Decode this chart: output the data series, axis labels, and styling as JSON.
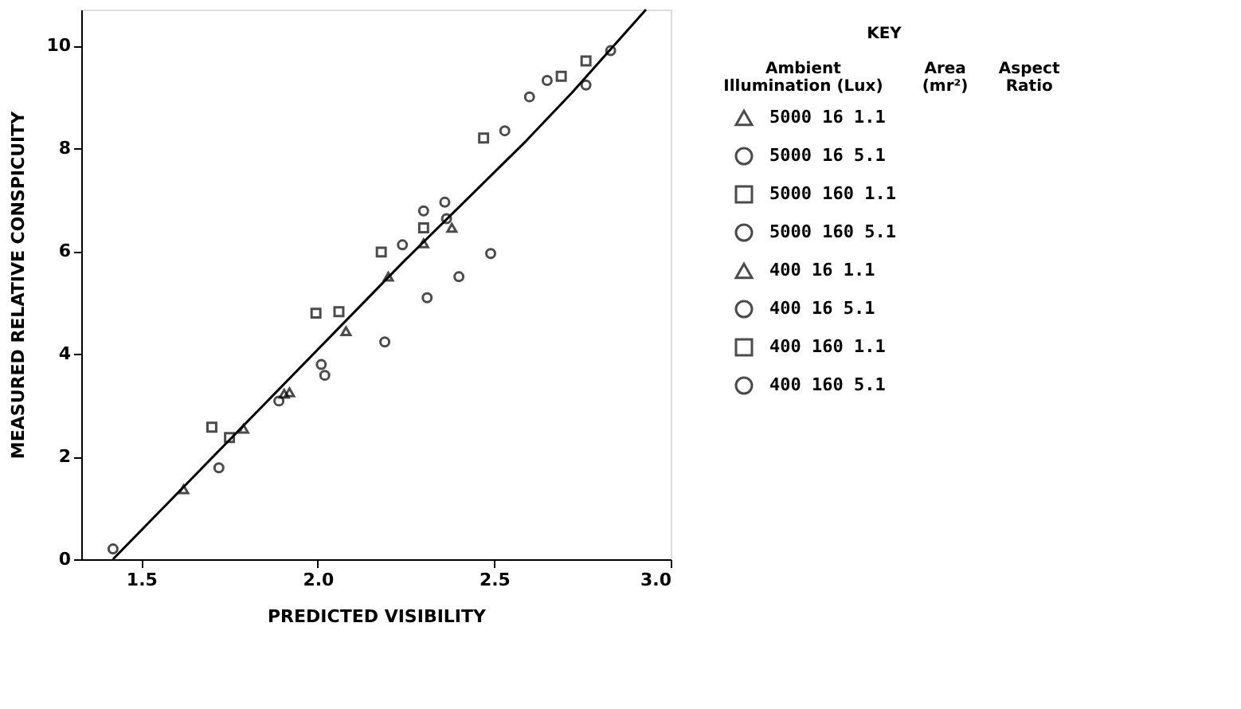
{
  "chart_data": {
    "type": "scatter",
    "xlabel": "PREDICTED VISIBILITY",
    "ylabel": "MEASURED RELATIVE CONSPICUITY",
    "legend_title": "KEY",
    "legend": "right",
    "annotations": [
      "Ambient Illumination (Lux)",
      "Area (mr²)",
      "Aspect Ratio"
    ],
    "xlim": [
      1.33,
      3.0
    ],
    "ylim": [
      0,
      10.7
    ],
    "xticks": [
      1.5,
      {
        "value": 2,
        "label": "2.0"
      },
      2.5,
      {
        "value": 3,
        "label": "3.0"
      }
    ],
    "yticks": [
      0,
      2,
      4,
      6,
      8,
      10
    ],
    "grid": false,
    "series": [
      {
        "name": "5000 16 1.1",
        "marker": "triangle",
        "color": "#000000",
        "x": [
          1.62,
          1.79,
          1.905,
          1.92,
          2.08,
          2.3,
          2.38
        ],
        "values": [
          1.36,
          2.54,
          3.22,
          3.25,
          4.44,
          6.15,
          6.45
        ]
      },
      {
        "name": "5000 16 5.1",
        "marker": "circle",
        "color": "#000000",
        "x": [
          1.42,
          1.72,
          1.89,
          2.02
        ],
        "values": [
          0.2,
          1.78,
          3.08,
          3.58
        ]
      },
      {
        "name": "5000 160 1.1",
        "marker": "square",
        "color": "#000000",
        "x": [
          1.7,
          1.75,
          1.995,
          2.06,
          2.18
        ],
        "values": [
          2.57,
          2.37,
          4.79,
          4.82,
          5.98
        ]
      },
      {
        "name": "5000 160 5.1",
        "marker": "circle",
        "color": "#000000",
        "x": [
          2.24,
          2.3,
          2.365
        ],
        "values": [
          6.12,
          6.78,
          6.63
        ]
      },
      {
        "name": "400 16 1.1",
        "marker": "triangle",
        "color": "#000000",
        "x": [
          2.2
        ],
        "values": [
          5.5
        ]
      },
      {
        "name": "400 16 5.1",
        "marker": "circle",
        "color": "#000000",
        "x": [
          2.01,
          2.19,
          2.31,
          2.4,
          2.49,
          2.36
        ],
        "values": [
          3.79,
          4.23,
          5.09,
          5.5,
          5.95,
          6.95
        ]
      },
      {
        "name": "400 160 1.1",
        "marker": "square",
        "color": "#000000",
        "x": [
          2.3,
          2.47,
          2.69,
          2.76
        ],
        "values": [
          6.45,
          8.2,
          9.4,
          9.7
        ]
      },
      {
        "name": "400 160 5.1",
        "marker": "circle",
        "color": "#000000",
        "x": [
          2.53,
          2.6,
          2.65,
          2.76,
          2.83
        ],
        "values": [
          8.34,
          9.0,
          9.32,
          9.23,
          9.9
        ]
      },
      {
        "type": "line",
        "color": "#000000",
        "line_style": "solid",
        "x": [
          1.42,
          2.24,
          2.59,
          2.72,
          2.93
        ],
        "values": [
          0,
          5.77,
          8.14,
          9.08,
          10.7
        ]
      }
    ]
  }
}
